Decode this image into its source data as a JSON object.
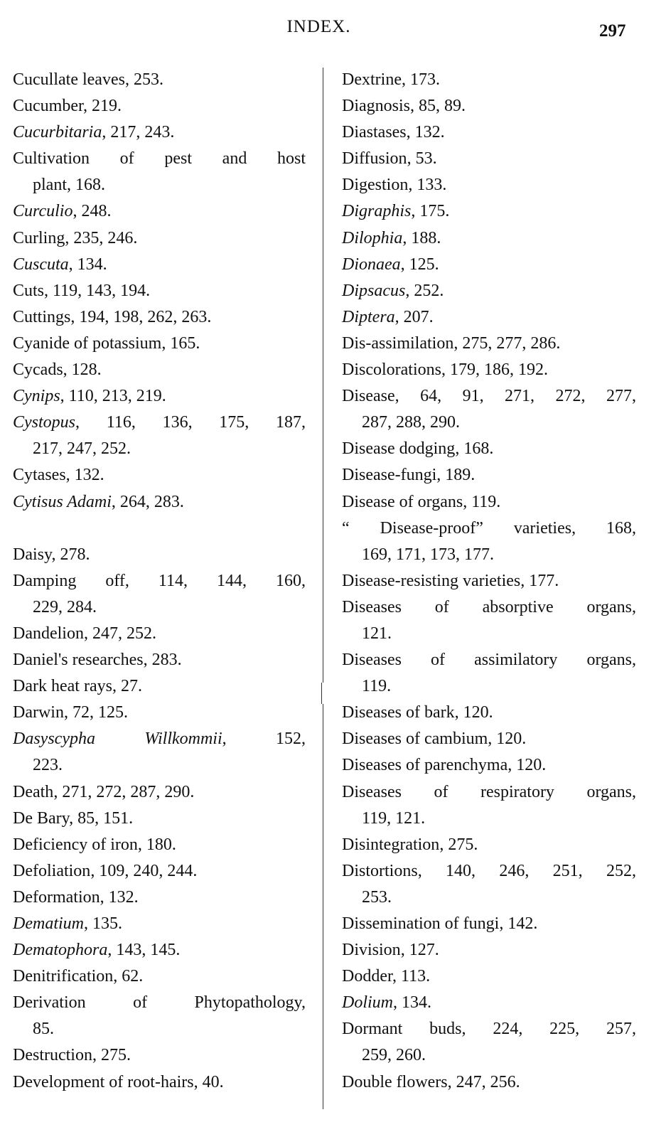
{
  "header": {
    "title": "INDEX.",
    "page_number": "297"
  },
  "columns": [
    {
      "entries": [
        {
          "term": "Cucullate leaves",
          "italic": false,
          "line1": ", 253."
        },
        {
          "term": "Cucumber",
          "italic": false,
          "line1": ", 219."
        },
        {
          "term": "Cucurbitaria",
          "italic": true,
          "line1": ", 217, 243."
        },
        {
          "term": "Cultivation of pest and host",
          "italic": false,
          "line1": "",
          "line2": "plant, 168."
        },
        {
          "term": "Curculio",
          "italic": true,
          "line1": ", 248."
        },
        {
          "term": "Curling",
          "italic": false,
          "line1": ", 235, 246."
        },
        {
          "term": "Cuscuta",
          "italic": true,
          "line1": ", 134."
        },
        {
          "term": "Cuts",
          "italic": false,
          "line1": ", 119, 143, 194."
        },
        {
          "term": "Cuttings",
          "italic": false,
          "line1": ", 194, 198, 262, 263."
        },
        {
          "term": "Cyanide of potassium",
          "italic": false,
          "line1": ", 165."
        },
        {
          "term": "Cycads",
          "italic": false,
          "line1": ", 128."
        },
        {
          "term": "Cynips",
          "italic": true,
          "line1": ", 110, 213, 219."
        },
        {
          "term": "Cystopus",
          "italic": true,
          "line1": ", 116, 136, 175, 187,",
          "line2": "217, 247, 252."
        },
        {
          "term": "Cytases",
          "italic": false,
          "line1": ", 132."
        },
        {
          "term": "Cytisus Adami",
          "italic": true,
          "line1": ", 264, 283."
        },
        {
          "blank": true
        },
        {
          "term": "Daisy",
          "italic": false,
          "line1": ", 278."
        },
        {
          "term": "Damping off",
          "italic": false,
          "line1": ", 114, 144, 160,",
          "line2": "229, 284."
        },
        {
          "term": "Dandelion",
          "italic": false,
          "line1": ", 247, 252."
        },
        {
          "term": "Daniel's researches",
          "italic": false,
          "line1": ", 283."
        },
        {
          "term": "Dark heat rays",
          "italic": false,
          "line1": ", 27."
        },
        {
          "term": "Darwin",
          "italic": false,
          "line1": ", 72, 125."
        },
        {
          "term": "Dasyscypha Willkommii",
          "italic": true,
          "line1": ", 152,",
          "line2": "223."
        },
        {
          "term": "Death",
          "italic": false,
          "line1": ", 271, 272, 287, 290."
        },
        {
          "term": "De Bary",
          "italic": false,
          "line1": ", 85, 151."
        },
        {
          "term": "Deficiency of iron",
          "italic": false,
          "line1": ", 180."
        },
        {
          "term": "Defoliation",
          "italic": false,
          "line1": ", 109, 240, 244."
        },
        {
          "term": "Deformation",
          "italic": false,
          "line1": ", 132."
        },
        {
          "term": "Dematium",
          "italic": true,
          "line1": ", 135."
        },
        {
          "term": "Dematophora",
          "italic": true,
          "line1": ", 143, 145."
        },
        {
          "term": "Denitrification",
          "italic": false,
          "line1": ", 62."
        },
        {
          "term": "Derivation of Phytopathology",
          "italic": false,
          "line1": ",",
          "line2": "85."
        },
        {
          "term": "Destruction",
          "italic": false,
          "line1": ", 275."
        },
        {
          "term": "Development of root-hairs",
          "italic": false,
          "line1": ", 40."
        }
      ]
    },
    {
      "entries": [
        {
          "term": "Dextrine",
          "italic": false,
          "line1": ", 173."
        },
        {
          "term": "Diagnosis",
          "italic": false,
          "line1": ", 85, 89."
        },
        {
          "term": "Diastases",
          "italic": false,
          "line1": ", 132."
        },
        {
          "term": "Diffusion",
          "italic": false,
          "line1": ", 53."
        },
        {
          "term": "Digestion",
          "italic": false,
          "line1": ", 133."
        },
        {
          "term": "Digraphis",
          "italic": true,
          "line1": ", 175."
        },
        {
          "term": "Dilophia",
          "italic": true,
          "line1": ", 188."
        },
        {
          "term": "Dionaea",
          "italic": true,
          "line1": ", 125."
        },
        {
          "term": "Dipsacus",
          "italic": true,
          "line1": ", 252."
        },
        {
          "term": "Diptera",
          "italic": true,
          "line1": ", 207."
        },
        {
          "term": "Dis-assimilation",
          "italic": false,
          "line1": ", 275, 277, 286."
        },
        {
          "term": "Discolorations",
          "italic": false,
          "line1": ", 179, 186, 192."
        },
        {
          "term": "Disease",
          "italic": false,
          "line1": ", 64, 91, 271, 272, 277,",
          "line2": "287, 288, 290."
        },
        {
          "term": "Disease dodging",
          "italic": false,
          "line1": ", 168."
        },
        {
          "term": "Disease-fungi",
          "italic": false,
          "line1": ", 189."
        },
        {
          "term": "Disease of organs",
          "italic": false,
          "line1": ", 119."
        },
        {
          "term": "“ Disease-proof” varieties",
          "italic": false,
          "line1": ", 168,",
          "line2": "169, 171, 173, 177."
        },
        {
          "term": "Disease-resisting varieties",
          "italic": false,
          "line1": ", 177."
        },
        {
          "term": "Diseases of absorptive organs",
          "italic": false,
          "line1": ",",
          "line2": "121."
        },
        {
          "term": "Diseases of assimilatory organs",
          "italic": false,
          "line1": ",",
          "line2": "119."
        },
        {
          "term": "Diseases of bark",
          "italic": false,
          "line1": ", 120."
        },
        {
          "term": "Diseases of cambium",
          "italic": false,
          "line1": ", 120."
        },
        {
          "term": "Diseases of parenchyma",
          "italic": false,
          "line1": ", 120."
        },
        {
          "term": "Diseases of respiratory organs",
          "italic": false,
          "line1": ",",
          "line2": "119, 121."
        },
        {
          "term": "Disintegration",
          "italic": false,
          "line1": ", 275."
        },
        {
          "term": "Distortions",
          "italic": false,
          "line1": ", 140, 246, 251, 252,",
          "line2": "253."
        },
        {
          "term": "Dissemination of fungi",
          "italic": false,
          "line1": ", 142."
        },
        {
          "term": "Division",
          "italic": false,
          "line1": ", 127."
        },
        {
          "term": "Dodder",
          "italic": false,
          "line1": ", 113."
        },
        {
          "term": "Dolium",
          "italic": true,
          "line1": ", 134."
        },
        {
          "term": "Dormant buds",
          "italic": false,
          "line1": ", 224, 225, 257,",
          "line2": "259, 260."
        },
        {
          "term": "Double flowers",
          "italic": false,
          "line1": ", 247, 256."
        }
      ]
    }
  ]
}
